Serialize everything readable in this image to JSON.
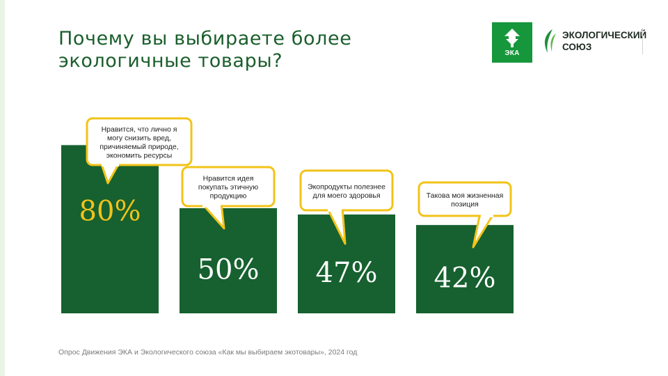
{
  "title_lines": [
    "Почему вы выбираете более",
    "экологичные товары?"
  ],
  "logos": {
    "eka": "ЭКА",
    "union_line1": "ЭКОЛОГИЧЕСКИЙ",
    "union_line2": "СОЮЗ"
  },
  "colors": {
    "bar": "#16612f",
    "primary_value_text": "#f2c318",
    "value_text": "#ffffff",
    "callout_border": "#f2c318",
    "callout_fill": "#ffffff",
    "title": "#1a5e2c"
  },
  "chart_data": {
    "type": "bar",
    "categories": [
      [
        "Нравится, что лично я",
        "могу снизить вред,",
        "причиняемый природе,",
        "экономить ресурсы"
      ],
      [
        "Нравится идея",
        "покупать этичную",
        "продукцию"
      ],
      [
        "Экопродукты полезнее",
        "для моего здоровья"
      ],
      [
        "Такова моя жизненная",
        "позиция"
      ]
    ],
    "values": [
      80,
      50,
      47,
      42
    ],
    "value_labels": [
      "80%",
      "50%",
      "47%",
      "42%"
    ],
    "ylim": [
      0,
      100
    ]
  },
  "footnote": "Опрос Движения ЭКА и Экологического союза «Как мы выбираем экотовары», 2024 год"
}
